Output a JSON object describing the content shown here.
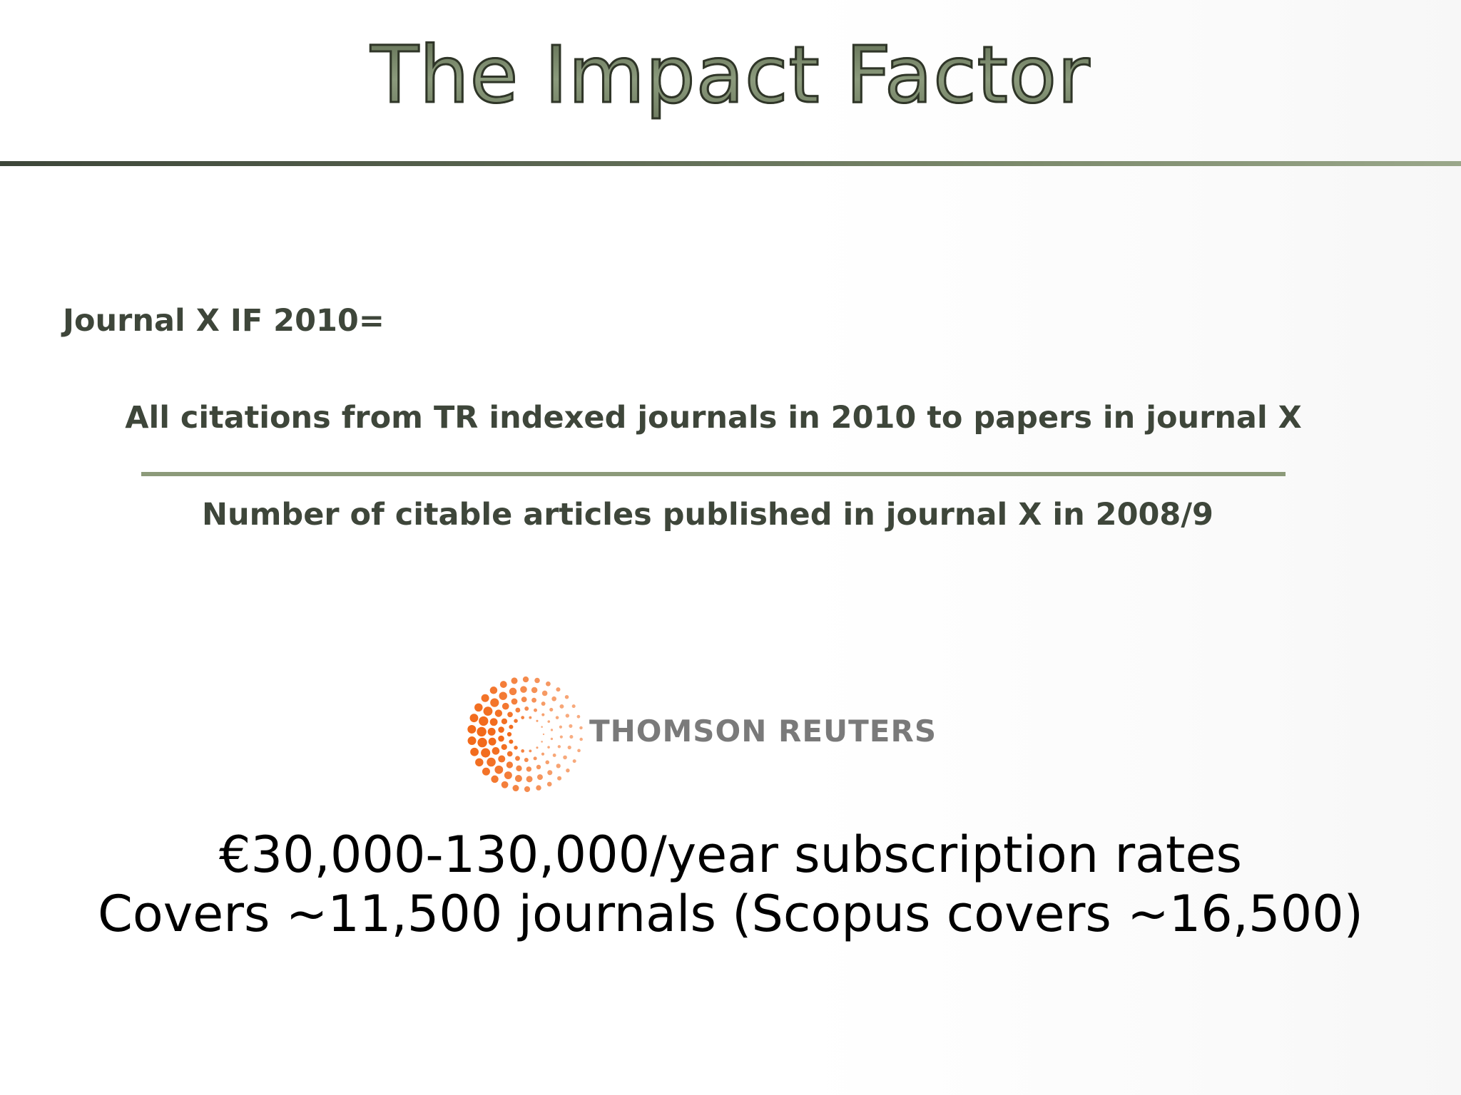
{
  "slide": {
    "title": "The Impact Factor",
    "formula": {
      "lhs": "Journal X IF 2010=",
      "numerator": "All citations from TR indexed journals in 2010 to papers in journal X",
      "denominator": "Number of citable articles published in journal X in 2008/9"
    },
    "logo": {
      "text": "THOMSON REUTERS",
      "mark_icon": "dotted-sunburst-logo",
      "mark_color": "#f26a1b",
      "text_color": "#7a7a7a"
    },
    "notes": [
      "€30,000-130,000/year subscription rates",
      "Covers ~11,500 journals (Scopus covers ~16,500)"
    ],
    "colors": {
      "title_fill": "#7c8a6f",
      "rule": "#58634f",
      "body_text": "#3e463a",
      "fraction_bar": "#8c9a7a"
    }
  }
}
